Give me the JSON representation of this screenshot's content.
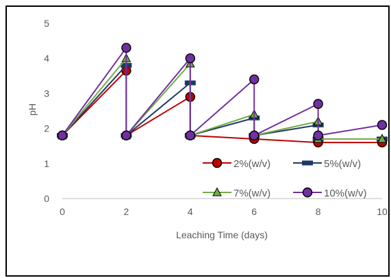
{
  "chart_data": {
    "type": "line",
    "xlabel": "Leaching Time (days)",
    "ylabel": "pH",
    "xlim": [
      0,
      10
    ],
    "ylim": [
      0,
      5
    ],
    "x_ticks": [
      "0",
      "2",
      "4",
      "6",
      "8",
      "10"
    ],
    "y_ticks": [
      "0",
      "1",
      "2",
      "3",
      "4",
      "5"
    ],
    "legend_position": "bottom-right",
    "grid": false,
    "series": [
      {
        "name": "2%(w/v)",
        "color": "#c00000",
        "marker": "circle",
        "points": [
          [
            0,
            1.8
          ],
          [
            2,
            3.65
          ],
          [
            2,
            1.8
          ],
          [
            4,
            2.9
          ],
          [
            4,
            1.8
          ],
          [
            6,
            1.7
          ],
          [
            8,
            1.6
          ],
          [
            10,
            1.6
          ]
        ]
      },
      {
        "name": "5%(w/v)",
        "color": "#1f3864",
        "marker": "dash",
        "points": [
          [
            0,
            1.8
          ],
          [
            2,
            3.8
          ],
          [
            2,
            1.8
          ],
          [
            4,
            3.3
          ],
          [
            4,
            1.8
          ],
          [
            6,
            2.3
          ],
          [
            6,
            1.8
          ],
          [
            8,
            2.1
          ],
          [
            8,
            1.7
          ],
          [
            10,
            1.7
          ]
        ]
      },
      {
        "name": "7%(w/v)",
        "color": "#70ad47",
        "marker": "triangle",
        "points": [
          [
            0,
            1.8
          ],
          [
            2,
            4.0
          ],
          [
            2,
            1.8
          ],
          [
            4,
            3.85
          ],
          [
            4,
            1.8
          ],
          [
            6,
            2.4
          ],
          [
            6,
            1.8
          ],
          [
            8,
            2.2
          ],
          [
            8,
            1.7
          ],
          [
            10,
            1.7
          ]
        ]
      },
      {
        "name": "10%(w/v)",
        "color": "#7030a0",
        "marker": "circle",
        "points": [
          [
            0,
            1.8
          ],
          [
            2,
            4.3
          ],
          [
            2,
            1.8
          ],
          [
            4,
            4.0
          ],
          [
            4,
            1.8
          ],
          [
            6,
            3.4
          ],
          [
            6,
            1.8
          ],
          [
            8,
            2.7
          ],
          [
            8,
            1.8
          ],
          [
            10,
            2.1
          ]
        ]
      }
    ]
  }
}
